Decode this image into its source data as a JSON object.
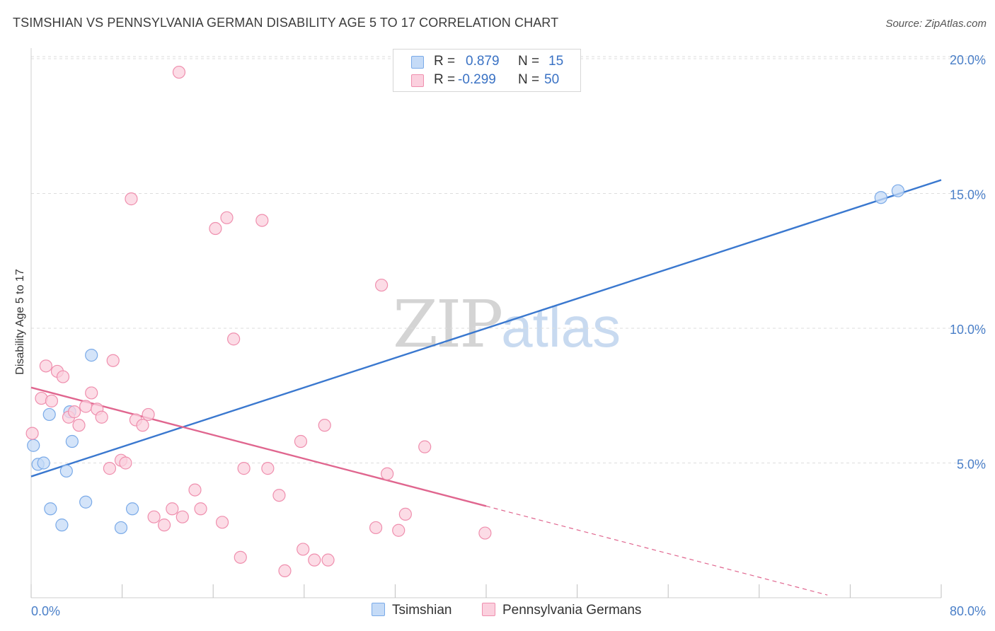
{
  "title": "TSIMSHIAN VS PENNSYLVANIA GERMAN DISABILITY AGE 5 TO 17 CORRELATION CHART",
  "source": "Source: ZipAtlas.com",
  "watermark": {
    "zip": "ZIP",
    "atlas": "atlas"
  },
  "legend": {
    "rows": [
      {
        "r_label": "R =",
        "r_value": "0.879",
        "n_label": "N =",
        "n_value": "15",
        "color": "#7aaae8",
        "fill": "#c5dbf7"
      },
      {
        "r_label": "R =",
        "r_value": "-0.299",
        "n_label": "N =",
        "n_value": "50",
        "color": "#ef8fae",
        "fill": "#fbd0de"
      }
    ]
  },
  "chart_data": {
    "type": "scatter",
    "title": "TSIMSHIAN VS PENNSYLVANIA GERMAN DISABILITY AGE 5 TO 17 CORRELATION CHART",
    "xlabel": "",
    "ylabel": "Disability Age 5 to 17",
    "xlim": [
      0,
      80
    ],
    "ylim": [
      0,
      20
    ],
    "x_tick_labels": [
      "0.0%",
      "80.0%"
    ],
    "y_ticks": [
      5,
      10,
      15,
      20
    ],
    "y_tick_labels": [
      "5.0%",
      "10.0%",
      "15.0%",
      "20.0%"
    ],
    "grid": "horizontal dashed",
    "legend_placement": "bottom-center",
    "series": [
      {
        "name": "Tsimshian",
        "color": "#3a78cf",
        "marker_fill": "#c5dbf7",
        "marker_stroke": "#7aaae8",
        "points": [
          [
            0.2,
            5.65
          ],
          [
            0.6,
            4.95
          ],
          [
            1.1,
            5.0
          ],
          [
            1.6,
            6.8
          ],
          [
            1.7,
            3.3
          ],
          [
            2.7,
            2.7
          ],
          [
            3.1,
            4.7
          ],
          [
            3.4,
            6.9
          ],
          [
            3.6,
            5.8
          ],
          [
            4.8,
            3.55
          ],
          [
            5.3,
            9.0
          ],
          [
            7.9,
            2.6
          ],
          [
            8.9,
            3.3
          ],
          [
            74.7,
            14.85
          ],
          [
            76.2,
            15.1
          ]
        ],
        "trend": {
          "x": [
            0,
            80
          ],
          "y": [
            4.5,
            15.5
          ],
          "style": "solid"
        }
      },
      {
        "name": "Pennsylvania Germans",
        "color": "#e0668f",
        "marker_fill": "#fbd0de",
        "marker_stroke": "#ef8fae",
        "points": [
          [
            0.1,
            6.1
          ],
          [
            0.9,
            7.4
          ],
          [
            1.3,
            8.6
          ],
          [
            1.8,
            7.3
          ],
          [
            2.3,
            8.4
          ],
          [
            2.8,
            8.2
          ],
          [
            3.3,
            6.7
          ],
          [
            3.8,
            6.9
          ],
          [
            4.2,
            6.4
          ],
          [
            4.8,
            7.1
          ],
          [
            5.3,
            7.6
          ],
          [
            5.8,
            7.0
          ],
          [
            6.2,
            6.7
          ],
          [
            6.9,
            4.8
          ],
          [
            7.2,
            8.8
          ],
          [
            7.9,
            5.1
          ],
          [
            8.3,
            5.0
          ],
          [
            8.8,
            14.8
          ],
          [
            9.2,
            6.6
          ],
          [
            9.8,
            6.4
          ],
          [
            10.3,
            6.8
          ],
          [
            10.8,
            3.0
          ],
          [
            11.7,
            2.7
          ],
          [
            12.4,
            3.3
          ],
          [
            13.0,
            19.5
          ],
          [
            13.3,
            3.0
          ],
          [
            14.4,
            4.0
          ],
          [
            14.9,
            3.3
          ],
          [
            16.2,
            13.7
          ],
          [
            16.8,
            2.8
          ],
          [
            17.2,
            14.1
          ],
          [
            17.8,
            9.6
          ],
          [
            18.4,
            1.5
          ],
          [
            18.7,
            4.8
          ],
          [
            20.3,
            14.0
          ],
          [
            20.8,
            4.8
          ],
          [
            21.8,
            3.8
          ],
          [
            22.3,
            1.0
          ],
          [
            23.7,
            5.8
          ],
          [
            23.9,
            1.8
          ],
          [
            24.9,
            1.4
          ],
          [
            25.8,
            6.4
          ],
          [
            26.1,
            1.4
          ],
          [
            30.3,
            2.6
          ],
          [
            30.8,
            11.6
          ],
          [
            31.3,
            4.6
          ],
          [
            32.3,
            2.5
          ],
          [
            32.9,
            3.1
          ],
          [
            34.6,
            5.6
          ],
          [
            39.9,
            2.4
          ]
        ],
        "trend": {
          "x": [
            0,
            40
          ],
          "y": [
            7.8,
            3.4
          ],
          "style": "solid"
        },
        "trend_extension": {
          "x": [
            40,
            70
          ],
          "y": [
            3.4,
            0.1
          ],
          "style": "dashed"
        }
      }
    ]
  }
}
